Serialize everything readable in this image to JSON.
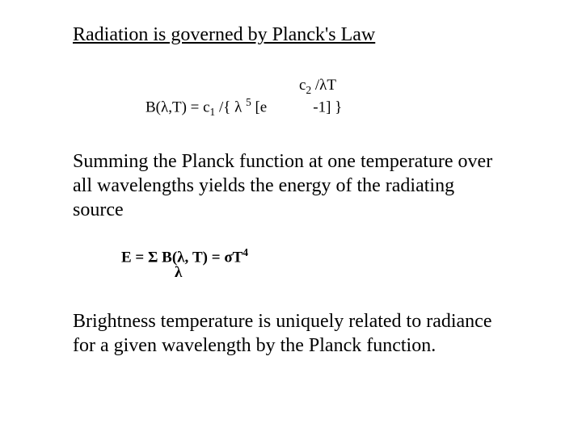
{
  "heading": "Radiation is governed by Planck's Law",
  "formula": {
    "exponent_frag": "c",
    "exponent_sub": "2",
    "exponent_tail": " /λT",
    "main_lhs": "B(λ,T)  =  c",
    "main_sub1": "1",
    "main_mid1": " /{ λ ",
    "main_sup5": "5",
    "main_mid2": " [e",
    "main_gap": "           ",
    "main_tail": " -1] }"
  },
  "para1": "Summing the Planck function at one temperature over all wavelengths yields the energy of the radiating source",
  "eformula": {
    "lhs": "E     =  Σ B(λ, T) =  σT",
    "sup4": "4",
    "lambda_below": "λ"
  },
  "para2": "Brightness temperature is uniquely related to radiance for a given wavelength by the Planck function."
}
